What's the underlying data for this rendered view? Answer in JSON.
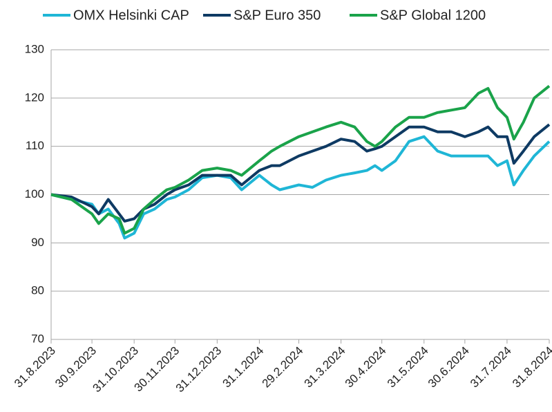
{
  "chart_data": {
    "type": "line",
    "x": [
      "2023-08-31",
      "2023-09-15",
      "2023-09-30",
      "2023-10-05",
      "2023-10-12",
      "2023-10-20",
      "2023-10-24",
      "2023-10-31",
      "2023-11-07",
      "2023-11-15",
      "2023-11-24",
      "2023-11-30",
      "2023-12-10",
      "2023-12-20",
      "2023-12-31",
      "2024-01-10",
      "2024-01-18",
      "2024-01-31",
      "2024-02-09",
      "2024-02-15",
      "2024-02-29",
      "2024-03-10",
      "2024-03-20",
      "2024-03-31",
      "2024-04-10",
      "2024-04-19",
      "2024-04-25",
      "2024-04-30",
      "2024-05-10",
      "2024-05-20",
      "2024-05-31",
      "2024-06-10",
      "2024-06-20",
      "2024-06-30",
      "2024-07-10",
      "2024-07-17",
      "2024-07-24",
      "2024-07-31",
      "2024-08-05",
      "2024-08-12",
      "2024-08-20",
      "2024-08-31"
    ],
    "series": [
      {
        "name": "OMX Helsinki CAP",
        "color": "#1fb6d6",
        "values": [
          100,
          99,
          98,
          96,
          97,
          94,
          91,
          92,
          96,
          97,
          99,
          99.5,
          101,
          103.5,
          104,
          103.5,
          101,
          104,
          102,
          101,
          102,
          101.5,
          103,
          104,
          104.5,
          105,
          106,
          105,
          107,
          111,
          112,
          109,
          108,
          108,
          108,
          108,
          106,
          107,
          102,
          105,
          108,
          111
        ]
      },
      {
        "name": "S&P Euro 350",
        "color": "#0e3a63",
        "values": [
          100,
          99.5,
          97.5,
          96,
          99,
          96,
          94.5,
          95,
          97,
          98,
          100,
          101,
          102,
          104,
          104,
          104,
          102,
          105,
          106,
          106,
          108,
          109,
          110,
          111.5,
          111,
          109,
          109.5,
          110,
          112,
          114,
          114,
          113,
          113,
          112,
          113,
          114,
          112,
          112,
          106.5,
          109,
          112,
          114.5
        ]
      },
      {
        "name": "S&P Global 1200",
        "color": "#1aa34a",
        "values": [
          100,
          99,
          96,
          94,
          96,
          95,
          92,
          93,
          97,
          99,
          101,
          101.5,
          103,
          105,
          105.5,
          105,
          104,
          107,
          109,
          110,
          112,
          113,
          114,
          115,
          114,
          111,
          110,
          111,
          114,
          116,
          116,
          117,
          117.5,
          118,
          121,
          122,
          118,
          116,
          111.5,
          115,
          120,
          122.5
        ]
      }
    ],
    "ylim": [
      70,
      130
    ],
    "yticks": [
      70,
      80,
      90,
      100,
      110,
      120,
      130
    ],
    "xlim": [
      "2023-08-31",
      "2024-08-31"
    ],
    "xticks": [
      {
        "value": "2023-08-31",
        "label": "31.8.2023"
      },
      {
        "value": "2023-09-30",
        "label": "30.9.2023"
      },
      {
        "value": "2023-10-31",
        "label": "31.10.2023"
      },
      {
        "value": "2023-11-30",
        "label": "30.11.2023"
      },
      {
        "value": "2023-12-31",
        "label": "31.12.2023"
      },
      {
        "value": "2024-01-31",
        "label": "31.1.2024"
      },
      {
        "value": "2024-02-29",
        "label": "29.2.2024"
      },
      {
        "value": "2024-03-31",
        "label": "31.3.2024"
      },
      {
        "value": "2024-04-30",
        "label": "30.4.2024"
      },
      {
        "value": "2024-05-31",
        "label": "31.5.2024"
      },
      {
        "value": "2024-06-30",
        "label": "30.6.2024"
      },
      {
        "value": "2024-07-31",
        "label": "31.7.2024"
      },
      {
        "value": "2024-08-31",
        "label": "31.8.2024"
      }
    ],
    "grid": true,
    "legend": "top"
  }
}
